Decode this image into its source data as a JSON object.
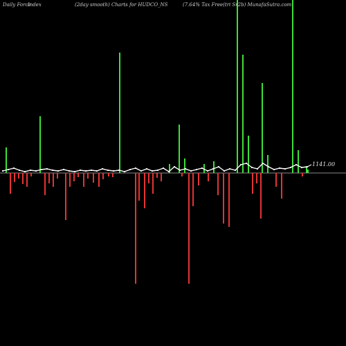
{
  "header": {
    "left": "Daily Force",
    "left2": "Index",
    "middle": "(2day smooth) Charts for HUDCO_NS",
    "right": "(7.64% Tax Free(tri Sr2b) MunafaSutra.com"
  },
  "chart_data": {
    "type": "bar",
    "title": "(2day smooth) Charts for HUDCO_NS",
    "xlabel": "",
    "ylabel": "",
    "last_value_label": "1141.00",
    "colors": {
      "positive": "#3ee03a",
      "negative": "#e53434",
      "smooth_line": "#ffffff",
      "zero_line": "#8a8a8a"
    },
    "bars": [
      {
        "i": 0,
        "v": 37
      },
      {
        "i": 1,
        "v": -30
      },
      {
        "i": 2,
        "v": -13
      },
      {
        "i": 3,
        "v": -8
      },
      {
        "i": 4,
        "v": -16
      },
      {
        "i": 5,
        "v": -20
      },
      {
        "i": 6,
        "v": -5
      },
      {
        "i": 7,
        "v": 82
      },
      {
        "i": 8,
        "v": -32
      },
      {
        "i": 9,
        "v": -15
      },
      {
        "i": 10,
        "v": -20
      },
      {
        "i": 11,
        "v": -8
      },
      {
        "i": 12,
        "v": -68
      },
      {
        "i": 13,
        "v": -20
      },
      {
        "i": 14,
        "v": -12
      },
      {
        "i": 15,
        "v": -6
      },
      {
        "i": 16,
        "v": -20
      },
      {
        "i": 17,
        "v": -8
      },
      {
        "i": 18,
        "v": -14
      },
      {
        "i": 19,
        "v": -20
      },
      {
        "i": 20,
        "v": -9
      },
      {
        "i": 21,
        "v": -5
      },
      {
        "i": 22,
        "v": -6
      },
      {
        "i": 23,
        "v": 174
      },
      {
        "i": 24,
        "v": -160
      },
      {
        "i": 25,
        "v": -40
      },
      {
        "i": 26,
        "v": -51
      },
      {
        "i": 27,
        "v": -15
      },
      {
        "i": 28,
        "v": -30
      },
      {
        "i": 29,
        "v": -7
      },
      {
        "i": 30,
        "v": -12
      },
      {
        "i": 31,
        "v": 13
      },
      {
        "i": 32,
        "v": 70
      },
      {
        "i": 33,
        "v": -5
      },
      {
        "i": 34,
        "v": 21
      },
      {
        "i": 35,
        "v": -160
      },
      {
        "i": 36,
        "v": -48
      },
      {
        "i": 37,
        "v": -18
      },
      {
        "i": 38,
        "v": 13
      },
      {
        "i": 39,
        "v": -12
      },
      {
        "i": 40,
        "v": 17
      },
      {
        "i": 41,
        "v": -32
      },
      {
        "i": 42,
        "v": -73
      },
      {
        "i": 43,
        "v": -78
      },
      {
        "i": 44,
        "v": 250
      },
      {
        "i": 45,
        "v": 171
      },
      {
        "i": 46,
        "v": 54
      },
      {
        "i": 47,
        "v": -30
      },
      {
        "i": 48,
        "v": -15
      },
      {
        "i": 49,
        "v": -66
      },
      {
        "i": 50,
        "v": 130
      },
      {
        "i": 51,
        "v": 26
      },
      {
        "i": 52,
        "v": -20
      },
      {
        "i": 53,
        "v": -37
      },
      {
        "i": 54,
        "v": 250
      },
      {
        "i": 55,
        "v": 33
      },
      {
        "i": 56,
        "v": -5
      },
      {
        "i": 57,
        "v": 10
      },
      {
        "i": 58,
        "v": 5
      }
    ],
    "bar_x": [
      8,
      14,
      20,
      26,
      32,
      38,
      44,
      57,
      64,
      70,
      76,
      82,
      94,
      100,
      106,
      112,
      120,
      126,
      134,
      142,
      148,
      156,
      162,
      172,
      195,
      200,
      208,
      214,
      220,
      226,
      232,
      244,
      258,
      262,
      266,
      272,
      278,
      286,
      294,
      300,
      308,
      314,
      322,
      330,
      342,
      350,
      358,
      364,
      370,
      376,
      378,
      386,
      398,
      406,
      422,
      430,
      436,
      442,
      444
    ],
    "smooth": [
      [
        4,
        247
      ],
      [
        12,
        245
      ],
      [
        20,
        243
      ],
      [
        28,
        246
      ],
      [
        36,
        248
      ],
      [
        44,
        246
      ],
      [
        52,
        247
      ],
      [
        60,
        245
      ],
      [
        68,
        244
      ],
      [
        76,
        246
      ],
      [
        84,
        247
      ],
      [
        92,
        245
      ],
      [
        100,
        247
      ],
      [
        108,
        248
      ],
      [
        116,
        246
      ],
      [
        124,
        247
      ],
      [
        132,
        246
      ],
      [
        140,
        247
      ],
      [
        148,
        244
      ],
      [
        156,
        246
      ],
      [
        164,
        247
      ],
      [
        172,
        246
      ],
      [
        180,
        248
      ],
      [
        188,
        245
      ],
      [
        196,
        243
      ],
      [
        204,
        247
      ],
      [
        212,
        244
      ],
      [
        220,
        247
      ],
      [
        228,
        246
      ],
      [
        236,
        243
      ],
      [
        244,
        248
      ],
      [
        252,
        241
      ],
      [
        260,
        246
      ],
      [
        268,
        244
      ],
      [
        276,
        247
      ],
      [
        284,
        245
      ],
      [
        292,
        243
      ],
      [
        300,
        247
      ],
      [
        308,
        244
      ],
      [
        316,
        241
      ],
      [
        324,
        247
      ],
      [
        332,
        244
      ],
      [
        340,
        246
      ],
      [
        348,
        238
      ],
      [
        356,
        236
      ],
      [
        364,
        242
      ],
      [
        372,
        244
      ],
      [
        380,
        236
      ],
      [
        388,
        241
      ],
      [
        396,
        245
      ],
      [
        404,
        243
      ],
      [
        412,
        244
      ],
      [
        420,
        242
      ],
      [
        428,
        238
      ],
      [
        436,
        242
      ],
      [
        444,
        241
      ]
    ]
  }
}
